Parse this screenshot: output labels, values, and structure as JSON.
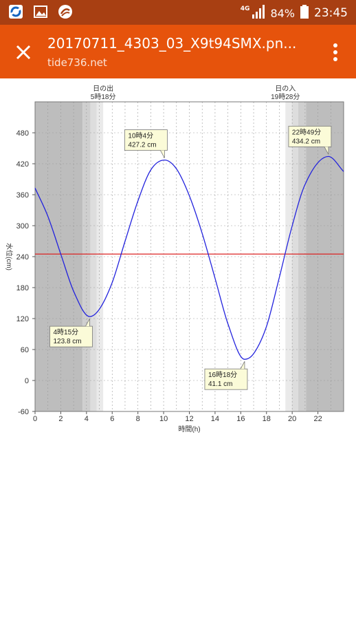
{
  "status_bar": {
    "network": "4G",
    "battery": "84%",
    "time": "23:45",
    "icons": [
      "app-logo-icon",
      "image-icon",
      "app-circle-icon",
      "signal-icon",
      "battery-icon"
    ]
  },
  "app_bar": {
    "title": "20170711_4303_03_X9t94SMX.pn...",
    "subtitle": "tide736.net",
    "background": "#e6530c"
  },
  "chart_data": {
    "type": "line",
    "xlabel": "時間(h)",
    "ylabel": "水位(cm)",
    "xlim": [
      0,
      24
    ],
    "ylim": [
      -60,
      540
    ],
    "xticks": [
      0,
      2,
      4,
      6,
      8,
      10,
      12,
      14,
      16,
      18,
      20,
      22
    ],
    "yticks": [
      -60,
      0,
      60,
      120,
      180,
      240,
      300,
      360,
      420,
      480
    ],
    "series": [
      {
        "color": "#2222dd",
        "x": [
          0,
          1,
          2,
          3,
          4.25,
          5,
          6,
          7,
          8,
          9,
          10.07,
          11,
          12,
          13,
          14,
          15,
          16.3,
          17,
          18,
          19,
          20,
          21,
          22.82,
          24
        ],
        "values": [
          373,
          318,
          245,
          173,
          123.8,
          138,
          190,
          270,
          348,
          408,
          427.2,
          410,
          358,
          285,
          198,
          110,
          41.1,
          52,
          105,
          200,
          300,
          380,
          434.2,
          405
        ]
      }
    ],
    "reference_line": {
      "value": 245,
      "color": "#dd2222"
    },
    "sunrise": {
      "label": "日の出",
      "time": "5時18分",
      "hour": 5.3
    },
    "sunset": {
      "label": "日の入",
      "time": "19時28分",
      "hour": 19.47
    },
    "annotations": [
      {
        "time": "10時4分",
        "height": "427.2 cm",
        "x": 10.07,
        "y": 427.2,
        "placement": "above"
      },
      {
        "time": "22時49分",
        "height": "434.2 cm",
        "x": 22.82,
        "y": 434.2,
        "placement": "above"
      },
      {
        "time": "4時15分",
        "height": "123.8 cm",
        "x": 4.25,
        "y": 123.8,
        "placement": "below"
      },
      {
        "time": "16時18分",
        "height": "41.1 cm",
        "x": 16.3,
        "y": 41.1,
        "placement": "below"
      }
    ],
    "grid": true
  }
}
